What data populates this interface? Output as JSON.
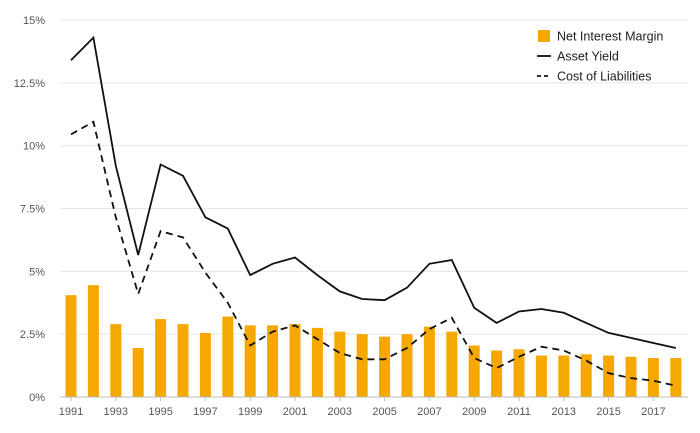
{
  "chart_data": {
    "type": "bar",
    "title": "",
    "xlabel": "",
    "ylabel": "",
    "ylim": [
      0,
      15
    ],
    "yticks": [
      "0%",
      "2.5%",
      "5%",
      "7.5%",
      "10%",
      "12.5%",
      "15%"
    ],
    "ytick_values": [
      0,
      2.5,
      5,
      7.5,
      10,
      12.5,
      15
    ],
    "xticks": [
      "1991",
      "1993",
      "1995",
      "1997",
      "1999",
      "2001",
      "2003",
      "2005",
      "2007",
      "2009",
      "2011",
      "2013",
      "2015",
      "2017"
    ],
    "grid": true,
    "legend_position": "top-right",
    "categories": [
      1991,
      1992,
      1993,
      1994,
      1995,
      1996,
      1997,
      1998,
      1999,
      2000,
      2001,
      2002,
      2003,
      2004,
      2005,
      2006,
      2007,
      2008,
      2009,
      2010,
      2011,
      2012,
      2013,
      2014,
      2015,
      2016,
      2017,
      2018
    ],
    "series": [
      {
        "name": "Net Interest Margin",
        "kind": "bar",
        "color": "#f5a800",
        "values": [
          4.05,
          4.45,
          2.9,
          1.95,
          3.1,
          2.9,
          2.55,
          3.2,
          2.85,
          2.85,
          2.9,
          2.75,
          2.6,
          2.5,
          2.4,
          2.5,
          2.8,
          2.6,
          2.05,
          1.85,
          1.9,
          1.65,
          1.65,
          1.7,
          1.65,
          1.6,
          1.55,
          1.55
        ]
      },
      {
        "name": "Asset Yield",
        "kind": "line",
        "dash": "solid",
        "color": "#111111",
        "values": [
          13.4,
          14.3,
          9.2,
          5.65,
          9.25,
          8.8,
          7.15,
          6.7,
          4.85,
          5.3,
          5.55,
          4.85,
          4.2,
          3.9,
          3.85,
          4.35,
          5.3,
          5.45,
          3.55,
          2.95,
          3.4,
          3.5,
          3.35,
          2.95,
          2.55,
          2.35,
          2.15,
          1.95
        ]
      },
      {
        "name": "Cost of Liabilities",
        "kind": "line",
        "dash": "dashed",
        "color": "#111111",
        "values": [
          10.45,
          10.95,
          7.15,
          4.1,
          6.6,
          6.35,
          4.95,
          3.75,
          2.05,
          2.6,
          2.85,
          2.3,
          1.75,
          1.5,
          1.5,
          1.95,
          2.7,
          3.15,
          1.55,
          1.15,
          1.6,
          2.0,
          1.85,
          1.45,
          0.95,
          0.75,
          0.65,
          0.45
        ]
      }
    ]
  }
}
